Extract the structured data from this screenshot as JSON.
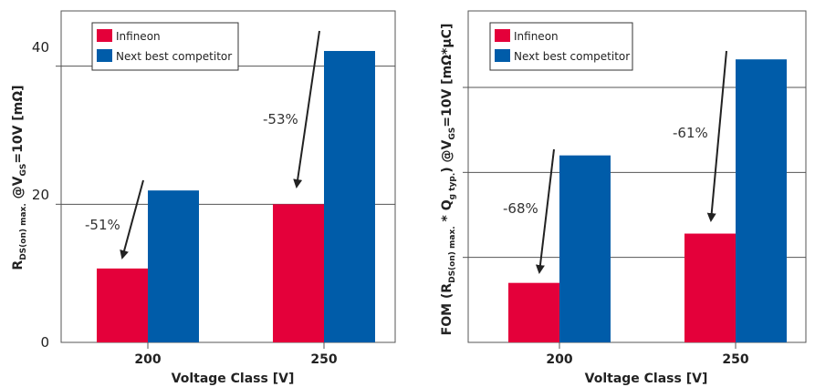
{
  "colors": {
    "infineon": "#e4003a",
    "competitor": "#005ca9",
    "grid": "#555555"
  },
  "chart_data": [
    {
      "type": "bar",
      "categories": [
        "200",
        "250"
      ],
      "series": [
        {
          "name": "Infineon",
          "values": [
            10.7,
            20
          ]
        },
        {
          "name": "Next best competitor",
          "values": [
            22,
            42.2
          ]
        }
      ],
      "xlabel": "Voltage Class [V]",
      "ylabel": {
        "main": "R",
        "sub1": "DS(on) max.",
        "mid": " @V",
        "sub2": "GS",
        "tail": "=10V [mΩ]"
      },
      "ylim": [
        0,
        48
      ],
      "yticks": [
        "0",
        "20",
        "40"
      ],
      "grid": true,
      "legend_position": "top-left",
      "annotations": [
        "-51%",
        "-53%"
      ]
    },
    {
      "type": "bar",
      "categories": [
        "200",
        "250"
      ],
      "series": [
        {
          "name": "Infineon",
          "values": [
            0.7,
            1.28
          ]
        },
        {
          "name": "Next best competitor",
          "values": [
            2.2,
            3.33
          ]
        }
      ],
      "xlabel": "Voltage Class [V]",
      "ylabel": {
        "p1": "FOM (R",
        "s1": "DS(on) max.",
        "p2": " * Q",
        "s2": "g typ.",
        "p3": ") @V",
        "s3": "GS",
        "p4": "=10V [mΩ*μC]"
      },
      "ylim": [
        0,
        3.9
      ],
      "grid": true,
      "legend_position": "top-left",
      "annotations": [
        "-68%",
        "-61%"
      ]
    }
  ]
}
